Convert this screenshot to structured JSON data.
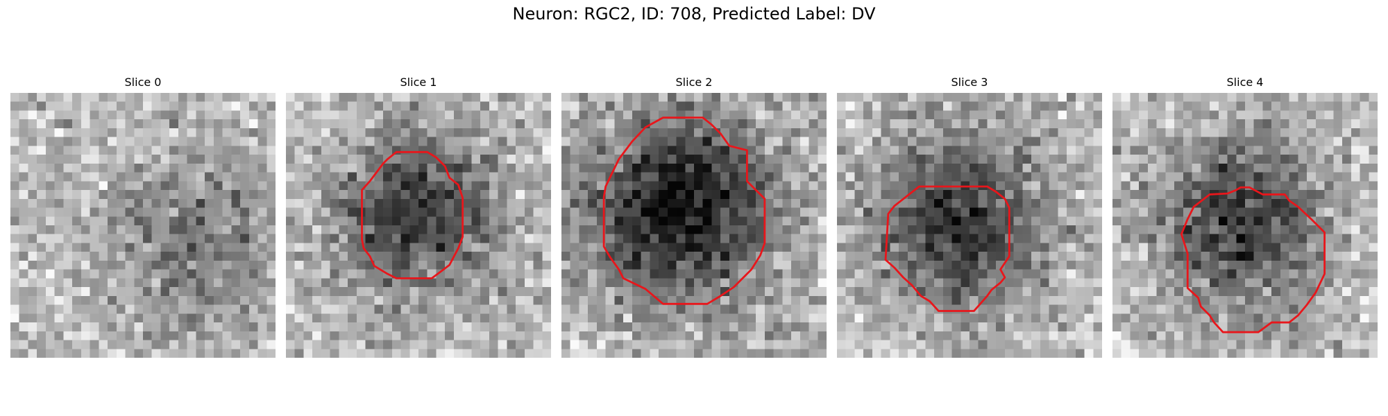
{
  "figure": {
    "title": "Neuron: RGC2, ID: 708, Predicted Label: DV",
    "grid_size": 30,
    "contour_color": "#e8161b",
    "image_colormap": "gray"
  },
  "panels": [
    {
      "title": "Slice 0",
      "has_contour": false,
      "dark_blob": {
        "cx": 21,
        "cy": 17,
        "r": 9,
        "depth": 0.25
      }
    },
    {
      "title": "Slice 1",
      "has_contour": true,
      "dark_blob": {
        "cx": 14.5,
        "cy": 13.5,
        "r": 8,
        "depth": 0.55
      },
      "contour": [
        [
          9.5,
          10
        ],
        [
          11,
          8
        ],
        [
          11.5,
          7.5
        ],
        [
          12.5,
          6.7
        ],
        [
          16,
          6.7
        ],
        [
          17,
          7.3
        ],
        [
          18,
          8.3
        ],
        [
          18.5,
          9.6
        ],
        [
          19.5,
          10.4
        ],
        [
          20,
          11.9
        ],
        [
          20,
          16.3
        ],
        [
          19.5,
          17.6
        ],
        [
          18.5,
          19.5
        ],
        [
          16.5,
          21
        ],
        [
          12.5,
          21
        ],
        [
          11.5,
          20.5
        ],
        [
          10,
          19.6
        ],
        [
          9.5,
          18.5
        ],
        [
          8.8,
          17.6
        ],
        [
          8.6,
          16.6
        ],
        [
          8.6,
          11
        ]
      ]
    },
    {
      "title": "Slice 2",
      "has_contour": true,
      "dark_blob": {
        "cx": 13.5,
        "cy": 13,
        "r": 10,
        "depth": 0.65
      },
      "contour": [
        [
          5,
          10.6
        ],
        [
          6.5,
          7.5
        ],
        [
          8,
          5.5
        ],
        [
          9.5,
          3.9
        ],
        [
          11.5,
          2.8
        ],
        [
          16,
          2.8
        ],
        [
          17,
          3.6
        ],
        [
          18,
          4.6
        ],
        [
          19,
          6
        ],
        [
          21,
          6.5
        ],
        [
          21,
          10
        ],
        [
          23,
          12
        ],
        [
          23,
          17
        ],
        [
          22.5,
          18.4
        ],
        [
          21.5,
          20
        ],
        [
          19.5,
          22
        ],
        [
          18,
          23
        ],
        [
          16.5,
          23.9
        ],
        [
          11.5,
          23.9
        ],
        [
          9.5,
          22.2
        ],
        [
          7,
          21
        ],
        [
          6.5,
          20
        ],
        [
          5.5,
          18.6
        ],
        [
          4.8,
          17.4
        ],
        [
          4.8,
          11.8
        ]
      ]
    },
    {
      "title": "Slice 3",
      "has_contour": true,
      "dark_blob": {
        "cx": 14,
        "cy": 15,
        "r": 9,
        "depth": 0.55
      },
      "contour": [
        [
          9.3,
          10.6
        ],
        [
          12,
          10.6
        ],
        [
          17,
          10.6
        ],
        [
          18,
          11.2
        ],
        [
          19,
          12
        ],
        [
          19.5,
          13
        ],
        [
          19.5,
          18.5
        ],
        [
          18.5,
          20
        ],
        [
          19,
          20.9
        ],
        [
          18.5,
          21.5
        ],
        [
          17.5,
          22.3
        ],
        [
          17,
          23
        ],
        [
          15.5,
          24.7
        ],
        [
          11.5,
          24.7
        ],
        [
          10.5,
          23.6
        ],
        [
          9.5,
          23
        ],
        [
          8.5,
          21.8
        ],
        [
          7.5,
          20.9
        ],
        [
          6.5,
          19.8
        ],
        [
          5.5,
          18.9
        ],
        [
          5.8,
          13.7
        ],
        [
          6.5,
          12.8
        ]
      ]
    },
    {
      "title": "Slice 4",
      "has_contour": true,
      "dark_blob": {
        "cx": 14.5,
        "cy": 14.5,
        "r": 8.5,
        "depth": 0.55
      },
      "contour": [
        [
          11,
          11.5
        ],
        [
          13,
          11.4
        ],
        [
          14,
          11
        ],
        [
          14.5,
          10.7
        ],
        [
          15.5,
          10.7
        ],
        [
          17,
          11.5
        ],
        [
          19.5,
          11.5
        ],
        [
          20,
          12.2
        ],
        [
          21,
          12.9
        ],
        [
          22.5,
          14.3
        ],
        [
          24,
          15.8
        ],
        [
          24,
          20.5
        ],
        [
          23,
          22.6
        ],
        [
          22,
          24
        ],
        [
          21,
          25.2
        ],
        [
          20,
          26
        ],
        [
          18,
          26
        ],
        [
          16.5,
          27.1
        ],
        [
          12.5,
          27.1
        ],
        [
          11.5,
          26
        ],
        [
          11,
          25.2
        ],
        [
          10,
          24.2
        ],
        [
          9.7,
          23.2
        ],
        [
          8.5,
          22.1
        ],
        [
          8.5,
          18.2
        ],
        [
          7.8,
          16
        ],
        [
          8.5,
          14.3
        ],
        [
          9.2,
          12.9
        ]
      ]
    }
  ]
}
